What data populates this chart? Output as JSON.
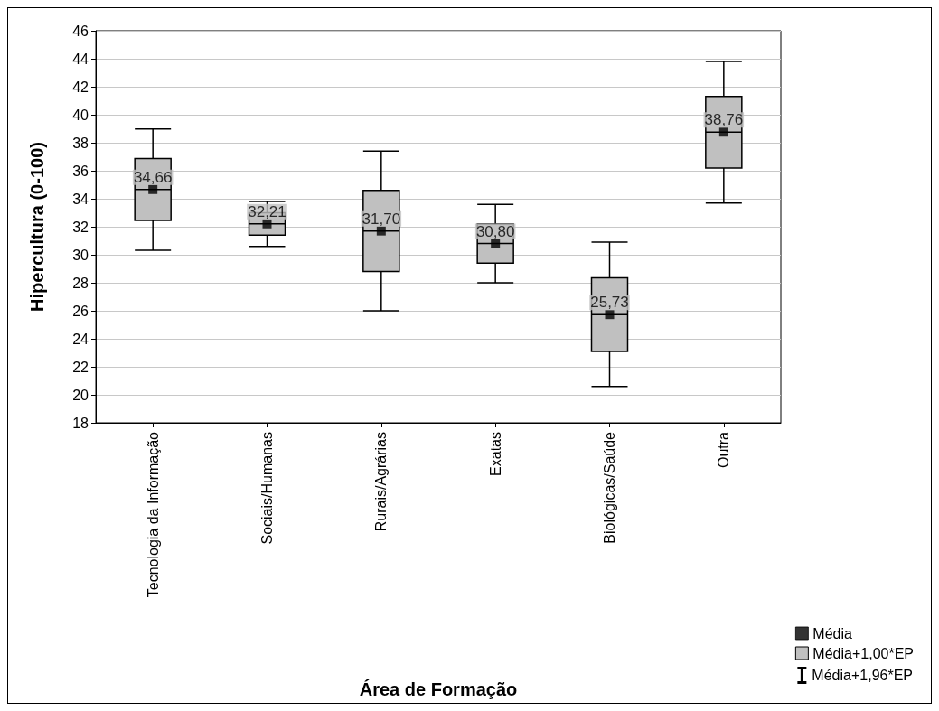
{
  "chart_data": {
    "type": "box",
    "xlabel": "Área de Formação",
    "ylabel": "Hipercultura (0-100)",
    "categories": [
      "Tecnologia da Informação",
      "Sociais/Humanas",
      "Rurais/Agrárias",
      "Exatas",
      "Biológicas/Saúde",
      "Outra"
    ],
    "ylim": [
      18,
      46
    ],
    "yticks": [
      18,
      20,
      22,
      24,
      26,
      28,
      30,
      32,
      34,
      36,
      38,
      40,
      42,
      44,
      46
    ],
    "grid": "y",
    "legend": "bottom right",
    "annotations": [
      "Média+1,96*EP"
    ],
    "series": [
      {
        "name": "Média+1,00*EP",
        "color": "#c0c0c0",
        "boxes": [
          {
            "low": 30.33,
            "q1": 32.45,
            "median": 34.66,
            "q3": 36.87,
            "high": 38.99
          },
          {
            "low": 30.6,
            "q1": 31.4,
            "median": 32.21,
            "q3": 33.0,
            "high": 33.8
          },
          {
            "low": 26.0,
            "q1": 28.8,
            "median": 31.7,
            "q3": 34.6,
            "high": 37.4
          },
          {
            "low": 28.0,
            "q1": 29.4,
            "median": 30.8,
            "q3": 32.2,
            "high": 33.6
          },
          {
            "low": 20.6,
            "q1": 23.1,
            "median": 25.73,
            "q3": 28.35,
            "high": 30.9
          },
          {
            "low": 33.7,
            "q1": 36.2,
            "median": 38.76,
            "q3": 41.3,
            "high": 43.8
          }
        ]
      },
      {
        "name": "Média",
        "type": "scatter",
        "marker": "square",
        "color": "#000000",
        "x": [
          "Tecnologia da Informação",
          "Sociais/Humanas",
          "Rurais/Agrárias",
          "Exatas",
          "Biológicas/Saúde",
          "Outra"
        ],
        "values": [
          34.66,
          32.21,
          31.7,
          30.8,
          25.73,
          38.76
        ],
        "value_labels": [
          "34,66",
          "32,21",
          "31,70",
          "30,80",
          "25,73",
          "38,76"
        ]
      }
    ]
  }
}
